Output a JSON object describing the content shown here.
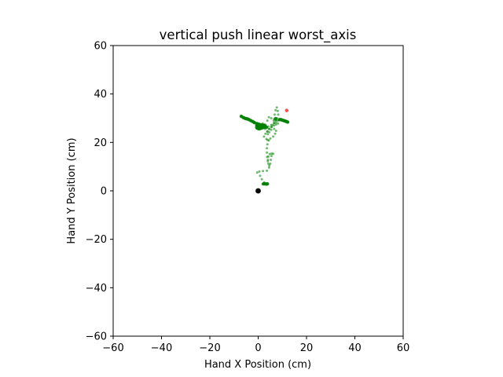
{
  "chart_data": {
    "type": "scatter",
    "title": "vertical push linear worst_axis",
    "xlabel": "Hand X Position (cm)",
    "ylabel": "Hand Y Position (cm)",
    "xlim": [
      -60,
      60
    ],
    "ylim": [
      -60,
      60
    ],
    "xticks": [
      -60,
      -40,
      -20,
      0,
      20,
      40,
      60
    ],
    "yticks": [
      -60,
      -40,
      -20,
      0,
      20,
      40,
      60
    ],
    "xtick_labels": [
      "−60",
      "−40",
      "−20",
      "0",
      "20",
      "40",
      "60"
    ],
    "ytick_labels": [
      "−60",
      "−40",
      "−20",
      "0",
      "20",
      "40",
      "60"
    ],
    "grid": false,
    "colors": {
      "trajectory": "#008000",
      "target": "#ff4d4d",
      "origin": "#000000"
    },
    "origin_point": {
      "x": 0,
      "y": 0
    },
    "target_point": {
      "x": 11.8,
      "y": 33.2
    },
    "trajectory": [
      [
        1.8,
        2.8
      ],
      [
        2.5,
        2.9
      ],
      [
        3.2,
        2.9
      ],
      [
        3.8,
        2.8
      ],
      [
        2.5,
        3.5
      ],
      [
        1.5,
        4.8
      ],
      [
        0.8,
        6.2
      ],
      [
        -0.4,
        7.6
      ],
      [
        0.5,
        8.0
      ],
      [
        2.0,
        8.2
      ],
      [
        3.6,
        8.3
      ],
      [
        4.5,
        9.6
      ],
      [
        5.0,
        11.2
      ],
      [
        5.2,
        12.8
      ],
      [
        5.5,
        14.4
      ],
      [
        6.2,
        15.3
      ],
      [
        5.6,
        15.4
      ],
      [
        4.8,
        15.2
      ],
      [
        4.2,
        14.2
      ],
      [
        4.0,
        12.8
      ],
      [
        4.2,
        11.2
      ],
      [
        4.6,
        10.4
      ],
      [
        4.0,
        12.2
      ],
      [
        3.7,
        14.0
      ],
      [
        3.6,
        15.8
      ],
      [
        3.6,
        17.6
      ],
      [
        3.8,
        19.2
      ],
      [
        3.9,
        21.0
      ],
      [
        5.0,
        21.6
      ],
      [
        6.2,
        22.4
      ],
      [
        7.0,
        23.6
      ],
      [
        7.4,
        24.8
      ],
      [
        6.6,
        25.6
      ],
      [
        5.4,
        25.2
      ],
      [
        4.6,
        24.2
      ],
      [
        4.0,
        23.4
      ],
      [
        3.8,
        24.4
      ],
      [
        4.5,
        25.5
      ],
      [
        5.4,
        26.4
      ],
      [
        6.0,
        27.2
      ],
      [
        6.6,
        28.0
      ],
      [
        7.2,
        29.0
      ],
      [
        7.8,
        30.0
      ],
      [
        8.3,
        31.5
      ],
      [
        8.1,
        33.0
      ],
      [
        7.7,
        34.4
      ],
      [
        7.2,
        33.3
      ],
      [
        6.8,
        31.5
      ],
      [
        6.6,
        29.6
      ],
      [
        7.4,
        29.3
      ],
      [
        8.6,
        29.4
      ],
      [
        9.8,
        29.2
      ],
      [
        10.8,
        28.9
      ],
      [
        11.6,
        28.6
      ],
      [
        12.2,
        28.3
      ],
      [
        11.0,
        29.1
      ],
      [
        9.4,
        29.5
      ],
      [
        8.0,
        29.0
      ],
      [
        6.6,
        28.0
      ],
      [
        5.4,
        27.2
      ],
      [
        4.2,
        26.5
      ],
      [
        3.0,
        27.0
      ],
      [
        2.1,
        27.4
      ],
      [
        1.2,
        27.2
      ],
      [
        0.3,
        26.4
      ],
      [
        -0.6,
        25.8
      ],
      [
        -0.3,
        26.5
      ],
      [
        0.4,
        27.3
      ],
      [
        -0.4,
        27.6
      ],
      [
        -0.9,
        27.0
      ],
      [
        0.0,
        26.9
      ],
      [
        1.0,
        26.5
      ],
      [
        1.8,
        26.2
      ],
      [
        2.8,
        25.6
      ],
      [
        3.0,
        26.6
      ],
      [
        2.6,
        27.4
      ],
      [
        1.8,
        27.8
      ],
      [
        1.2,
        27.2
      ],
      [
        0.4,
        26.6
      ],
      [
        -0.4,
        27.0
      ],
      [
        -0.6,
        27.8
      ],
      [
        -1.4,
        28.3
      ],
      [
        -2.4,
        28.8
      ],
      [
        -3.4,
        29.3
      ],
      [
        -4.4,
        29.7
      ],
      [
        -5.4,
        30.1
      ],
      [
        -6.4,
        30.5
      ],
      [
        -7.0,
        30.8
      ],
      [
        -6.0,
        30.2
      ],
      [
        -5.0,
        29.8
      ],
      [
        -4.0,
        29.4
      ],
      [
        -3.2,
        28.9
      ],
      [
        -2.4,
        28.6
      ],
      [
        -1.6,
        28.2
      ],
      [
        -0.8,
        27.8
      ],
      [
        0.0,
        27.2
      ],
      [
        1.0,
        27.0
      ],
      [
        2.0,
        27.1
      ],
      [
        3.0,
        27.3
      ],
      [
        3.8,
        29.0
      ],
      [
        4.4,
        30.4
      ],
      [
        5.4,
        30.0
      ],
      [
        6.4,
        29.0
      ],
      [
        7.4,
        28.2
      ],
      [
        8.2,
        27.8
      ],
      [
        7.4,
        27.4
      ],
      [
        6.6,
        27.0
      ],
      [
        5.6,
        26.4
      ],
      [
        4.6,
        25.6
      ],
      [
        3.8,
        24.6
      ],
      [
        3.0,
        23.6
      ],
      [
        2.4,
        22.4
      ],
      [
        3.4,
        21.4
      ],
      [
        4.4,
        20.8
      ]
    ],
    "trajectory_dense": [
      [
        -7.0,
        30.8
      ],
      [
        -6.2,
        30.3
      ],
      [
        -5.6,
        30.0
      ],
      [
        -5.0,
        29.8
      ],
      [
        -4.4,
        29.7
      ],
      [
        -3.8,
        29.4
      ],
      [
        -3.0,
        29.0
      ],
      [
        -2.2,
        28.6
      ],
      [
        -1.6,
        28.2
      ],
      [
        -0.6,
        27.8
      ],
      [
        0.0,
        27.6
      ],
      [
        0.6,
        27.4
      ],
      [
        1.2,
        27.2
      ],
      [
        1.8,
        27.0
      ],
      [
        2.4,
        26.8
      ],
      [
        3.0,
        26.6
      ],
      [
        -0.6,
        26.2
      ],
      [
        -0.2,
        25.8
      ],
      [
        0.4,
        25.6
      ],
      [
        1.0,
        25.8
      ],
      [
        1.6,
        26.0
      ],
      [
        2.2,
        26.2
      ],
      [
        2.8,
        26.4
      ],
      [
        3.4,
        26.2
      ],
      [
        -0.4,
        27.0
      ],
      [
        0.2,
        27.0
      ],
      [
        0.8,
        26.6
      ],
      [
        1.4,
        26.4
      ],
      [
        8.8,
        29.4
      ],
      [
        9.4,
        29.4
      ],
      [
        10.0,
        29.2
      ],
      [
        10.6,
        29.0
      ],
      [
        11.2,
        28.8
      ],
      [
        11.8,
        28.6
      ],
      [
        12.2,
        28.4
      ],
      [
        7.2,
        29.8
      ],
      [
        2.2,
        2.9
      ],
      [
        2.8,
        2.9
      ],
      [
        3.4,
        2.8
      ],
      [
        3.8,
        2.9
      ]
    ]
  }
}
